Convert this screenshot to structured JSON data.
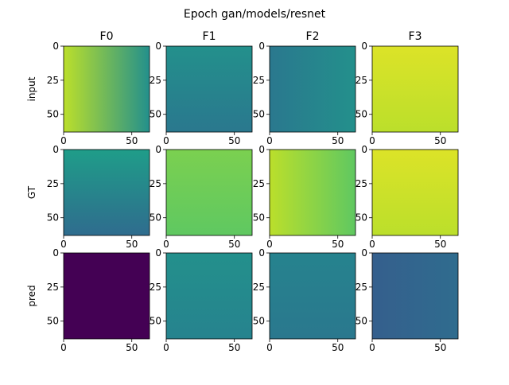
{
  "figure": {
    "suptitle": "Epoch gan/models/resnet",
    "columns": [
      "F0",
      "F1",
      "F2",
      "F3"
    ],
    "rows": [
      "input",
      "GT",
      "pred"
    ]
  },
  "chart_data": {
    "type": "heatmap",
    "layout": "grid 3x4 of image panels",
    "colormap": "viridis",
    "x_range": [
      0,
      63
    ],
    "y_range": [
      0,
      63
    ],
    "x_ticks": [
      0,
      50
    ],
    "y_ticks": [
      0,
      25,
      50
    ],
    "tick_labels": {
      "x": [
        "0",
        "50"
      ],
      "y": [
        "0",
        "25",
        "50"
      ]
    },
    "panels": [
      {
        "row": "input",
        "col": "F0",
        "gradient": [
          0.9,
          0.5
        ],
        "direction": "left-to-right"
      },
      {
        "row": "input",
        "col": "F1",
        "gradient": [
          0.5,
          0.4
        ],
        "direction": "top-to-bottom"
      },
      {
        "row": "input",
        "col": "F2",
        "gradient": [
          0.4,
          0.5
        ],
        "direction": "left-to-right"
      },
      {
        "row": "input",
        "col": "F3",
        "gradient": [
          0.95,
          0.9
        ],
        "direction": "top-to-bottom"
      },
      {
        "row": "GT",
        "col": "F0",
        "gradient": [
          0.55,
          0.35
        ],
        "direction": "top-to-bottom"
      },
      {
        "row": "GT",
        "col": "F1",
        "gradient": [
          0.8,
          0.75
        ],
        "direction": "top-to-bottom"
      },
      {
        "row": "GT",
        "col": "F2",
        "gradient": [
          0.9,
          0.75
        ],
        "direction": "left-to-right"
      },
      {
        "row": "GT",
        "col": "F3",
        "gradient": [
          0.95,
          0.9
        ],
        "direction": "top-to-bottom"
      },
      {
        "row": "pred",
        "col": "F0",
        "gradient": [
          0.0,
          0.0
        ],
        "direction": "top-to-bottom"
      },
      {
        "row": "pred",
        "col": "F1",
        "gradient": [
          0.5,
          0.45
        ],
        "direction": "top-to-bottom"
      },
      {
        "row": "pred",
        "col": "F2",
        "gradient": [
          0.45,
          0.4
        ],
        "direction": "top-to-bottom"
      },
      {
        "row": "pred",
        "col": "F3",
        "gradient": [
          0.3,
          0.35
        ],
        "direction": "left-to-right"
      }
    ]
  }
}
